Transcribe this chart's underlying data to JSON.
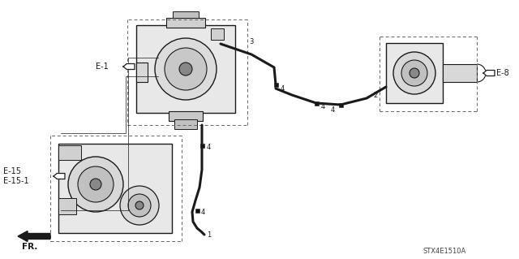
{
  "bg_color": "#ffffff",
  "diagram_code": "STX4E1510A",
  "lc": "#1a1a1a",
  "dc": "#666666",
  "labels": {
    "E1": "E-1",
    "E8": "E-8",
    "E15": "E-15",
    "E151": "E-15-1",
    "FR": "FR.",
    "p1": "1",
    "p2": "2",
    "p3": "3",
    "p4": "4"
  },
  "fs": 7,
  "fss": 6,
  "figsize": [
    6.4,
    3.19
  ],
  "dpi": 100,
  "xlim": [
    0,
    640
  ],
  "ylim": [
    0,
    319
  ]
}
